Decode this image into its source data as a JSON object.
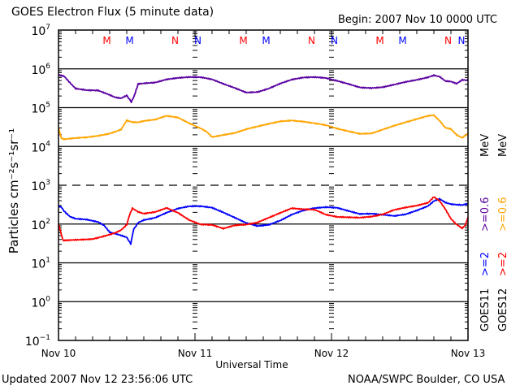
{
  "header": {
    "title": "GOES Electron Flux (5 minute data)",
    "begin": "Begin: 2007 Nov 10 0000 UTC"
  },
  "footer": {
    "updated": "Updated 2007 Nov 12 23:56:06 UTC",
    "credit": "NOAA/SWPC Boulder, CO USA"
  },
  "colors": {
    "goes11_2mev": "#0000ff",
    "goes12_2mev": "#ff0000",
    "goes11_06mev": "#5a00a0",
    "goes12_06mev": "#ffa500",
    "midnight_M": "#ff0000",
    "midnight_N_blue": "#0000ff"
  },
  "chart_data": {
    "type": "line",
    "title": "GOES Electron Flux (5 minute data)",
    "xlabel": "Universal Time",
    "ylabel": "Particles cm⁻²s⁻¹sr⁻¹",
    "yscale": "log",
    "ylim_exponent": [
      -1,
      7
    ],
    "y_ticks": [
      {
        "base": "10",
        "exp": "7"
      },
      {
        "base": "10",
        "exp": "6"
      },
      {
        "base": "10",
        "exp": "5"
      },
      {
        "base": "10",
        "exp": "4"
      },
      {
        "base": "10",
        "exp": "3"
      },
      {
        "base": "10",
        "exp": "2"
      },
      {
        "base": "10",
        "exp": "1"
      },
      {
        "base": "10",
        "exp": "0"
      },
      {
        "base": "10",
        "exp": "−1"
      }
    ],
    "x_unit": "hours since 2007 Nov 10 0000 UTC",
    "xlim": [
      0,
      72
    ],
    "x_ticks": [
      {
        "label": "Nov 10",
        "hour": 0
      },
      {
        "label": "Nov 11",
        "hour": 24
      },
      {
        "label": "Nov 12",
        "hour": 48
      },
      {
        "label": "Nov 13",
        "hour": 72
      }
    ],
    "reference_lines": [
      {
        "value_exp": 6,
        "style": "solid"
      },
      {
        "value_exp": 5,
        "style": "solid"
      },
      {
        "value_exp": 4,
        "style": "solid"
      },
      {
        "value_exp": 3,
        "style": "dashed"
      },
      {
        "value_exp": 2,
        "style": "solid"
      },
      {
        "value_exp": 1,
        "style": "solid"
      },
      {
        "value_exp": 0,
        "style": "solid"
      }
    ],
    "markers": [
      {
        "label": "M",
        "color": "red",
        "hour": 8.5
      },
      {
        "label": "M",
        "color": "blue",
        "hour": 12.5
      },
      {
        "label": "N",
        "color": "red",
        "hour": 20.5
      },
      {
        "label": "N",
        "color": "blue",
        "hour": 24.5
      },
      {
        "label": "M",
        "color": "red",
        "hour": 32.5
      },
      {
        "label": "M",
        "color": "blue",
        "hour": 36.5
      },
      {
        "label": "N",
        "color": "red",
        "hour": 44.5
      },
      {
        "label": "N",
        "color": "blue",
        "hour": 48.5
      },
      {
        "label": "M",
        "color": "red",
        "hour": 56.5
      },
      {
        "label": "M",
        "color": "blue",
        "hour": 60.5
      },
      {
        "label": "N",
        "color": "red",
        "hour": 68.5
      },
      {
        "label": "N",
        "color": "blue",
        "hour": 72.5
      }
    ],
    "legend": {
      "placement": "right",
      "columns": [
        {
          "satellite": "GOES11",
          "low": ">=2",
          "high": ">=0.6",
          "unit": "MeV"
        },
        {
          "satellite": "GOES12",
          "low": ">=2",
          "high": ">=0.6",
          "unit": "MeV"
        }
      ]
    },
    "series": [
      {
        "name": "GOES11 >=0.6 MeV",
        "color": "#5a00a0",
        "x": [
          0,
          1,
          2,
          3,
          5,
          7,
          9,
          10,
          11,
          12,
          12.8,
          13.3,
          14,
          15,
          17,
          19,
          21,
          23,
          25,
          27,
          29,
          31,
          33,
          35,
          37,
          39,
          41,
          43,
          45,
          47,
          49,
          51,
          53,
          55,
          57,
          59,
          61,
          63,
          65,
          66,
          67,
          68,
          69,
          70,
          71,
          72
        ],
        "y": [
          700000,
          650000,
          450000,
          320000,
          290000,
          280000,
          210000,
          180000,
          170000,
          200000,
          140000,
          200000,
          400000,
          420000,
          450000,
          550000,
          600000,
          620000,
          600000,
          520000,
          400000,
          320000,
          250000,
          260000,
          320000,
          420000,
          520000,
          580000,
          600000,
          580000,
          500000,
          420000,
          340000,
          320000,
          330000,
          380000,
          450000,
          520000,
          620000,
          700000,
          650000,
          500000,
          480000,
          420000,
          520000,
          500000
        ]
      },
      {
        "name": "GOES12 >=0.6 MeV",
        "color": "#ffa500",
        "x": [
          0,
          0.5,
          1,
          3,
          5,
          7,
          9,
          11,
          12,
          13,
          14,
          15,
          17,
          19,
          21,
          23,
          25,
          26,
          27,
          29,
          31,
          33,
          35,
          37,
          39,
          41,
          43,
          45,
          47,
          49,
          51,
          53,
          55,
          57,
          59,
          61,
          63,
          65,
          66,
          67,
          68,
          69,
          70,
          71,
          72
        ],
        "y": [
          30000,
          16000,
          15000,
          16000,
          17000,
          19000,
          22000,
          28000,
          48000,
          43000,
          42000,
          45000,
          48000,
          60000,
          55000,
          40000,
          30000,
          25000,
          18000,
          20000,
          22000,
          27000,
          32000,
          38000,
          45000,
          48000,
          45000,
          40000,
          35000,
          28000,
          24000,
          21000,
          22000,
          28000,
          35000,
          42000,
          50000,
          60000,
          62000,
          45000,
          30000,
          28000,
          20000,
          17000,
          22000
        ]
      },
      {
        "name": "GOES11 >=2 MeV",
        "color": "#0000ff",
        "x": [
          0,
          0.5,
          1,
          2,
          3,
          5,
          7,
          8,
          9,
          10,
          11,
          12,
          12.7,
          13.2,
          14,
          15,
          17,
          19,
          21,
          23,
          25,
          27,
          29,
          31,
          33,
          35,
          37,
          39,
          41,
          43,
          45,
          47,
          49,
          51,
          53,
          55,
          57,
          59,
          61,
          63,
          65,
          66,
          67,
          68,
          69,
          70,
          71,
          72
        ],
        "y": [
          300,
          280,
          220,
          160,
          140,
          130,
          110,
          90,
          60,
          55,
          50,
          45,
          30,
          70,
          110,
          130,
          150,
          200,
          250,
          280,
          280,
          260,
          200,
          150,
          110,
          90,
          95,
          120,
          170,
          220,
          260,
          280,
          270,
          220,
          180,
          180,
          170,
          160,
          180,
          230,
          300,
          400,
          450,
          360,
          320,
          310,
          300,
          330
        ]
      },
      {
        "name": "GOES12 >=2 MeV",
        "color": "#ff0000",
        "x": [
          0,
          0.4,
          0.8,
          2,
          4,
          6,
          8,
          10,
          11,
          12,
          12.5,
          13,
          14,
          15,
          17,
          19,
          21,
          23,
          25,
          27,
          29,
          31,
          33,
          35,
          37,
          39,
          41,
          43,
          45,
          47,
          49,
          51,
          53,
          55,
          57,
          59,
          61,
          63,
          65,
          66,
          67,
          68,
          69,
          70,
          71,
          71.5,
          72
        ],
        "y": [
          100,
          60,
          38,
          38,
          40,
          42,
          50,
          60,
          70,
          95,
          170,
          250,
          200,
          180,
          200,
          260,
          200,
          130,
          100,
          95,
          75,
          90,
          95,
          110,
          150,
          200,
          260,
          240,
          230,
          170,
          150,
          150,
          150,
          160,
          180,
          230,
          260,
          290,
          350,
          500,
          400,
          250,
          140,
          100,
          80,
          95,
          150
        ]
      }
    ]
  }
}
